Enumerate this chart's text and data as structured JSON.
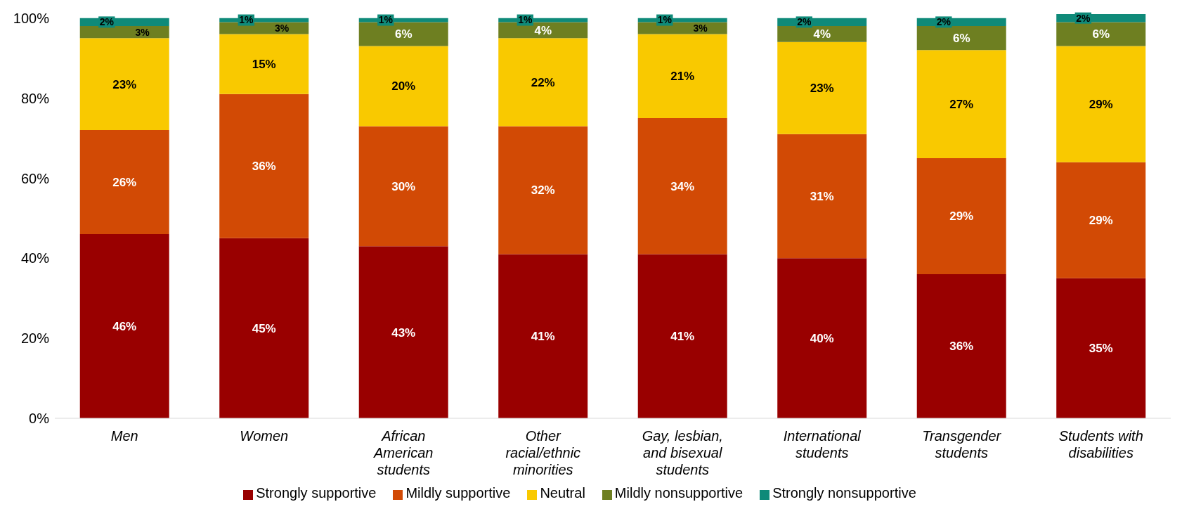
{
  "chart_data": {
    "type": "bar",
    "stacked": true,
    "categories": [
      "Men",
      "Women",
      "African American students",
      "Other racial/ethnic minorities",
      "Gay, lesbian, and bisexual students",
      "International students",
      "Transgender students",
      "Students with disabilities"
    ],
    "series": [
      {
        "name": "Strongly supportive",
        "color": "#990000",
        "values": [
          46,
          45,
          43,
          41,
          41,
          40,
          36,
          35
        ],
        "value_labels": [
          "46%",
          "45%",
          "43%",
          "41%",
          "41%",
          "40%",
          "36%",
          "35%"
        ]
      },
      {
        "name": "Mildly supportive",
        "color": "#d24a05",
        "values": [
          26,
          36,
          30,
          32,
          34,
          31,
          29,
          29
        ],
        "value_labels": [
          "26%",
          "36%",
          "30%",
          "32%",
          "34%",
          "31%",
          "29%",
          "29%"
        ]
      },
      {
        "name": "Neutral",
        "color": "#f9c900",
        "values": [
          23,
          15,
          20,
          22,
          21,
          23,
          27,
          29
        ],
        "value_labels": [
          "23%",
          "15%",
          "20%",
          "22%",
          "21%",
          "23%",
          "27%",
          "29%"
        ]
      },
      {
        "name": "Mildly nonsupportive",
        "color": "#6e7f21",
        "values": [
          3,
          3,
          6,
          4,
          3,
          4,
          6,
          6
        ],
        "value_labels": [
          "3%",
          "3%",
          "6%",
          "4%",
          "3%",
          "4%",
          "6%",
          "6%"
        ]
      },
      {
        "name": "Strongly nonsupportive",
        "color": "#0f8a79",
        "values": [
          2,
          1,
          1,
          1,
          1,
          2,
          2,
          2
        ],
        "value_labels": [
          "2%",
          "1%",
          "1%",
          "1%",
          "1%",
          "2%",
          "2%",
          "2%"
        ]
      }
    ],
    "ylim": [
      0,
      101
    ],
    "yticks": [
      {
        "value": 0,
        "label": "0%"
      },
      {
        "value": 20,
        "label": "20%"
      },
      {
        "value": 40,
        "label": "40%"
      },
      {
        "value": 60,
        "label": "60%"
      },
      {
        "value": 80,
        "label": "80%"
      },
      {
        "value": 100,
        "label": "100%"
      }
    ],
    "legend": "bottom",
    "grid": false
  }
}
